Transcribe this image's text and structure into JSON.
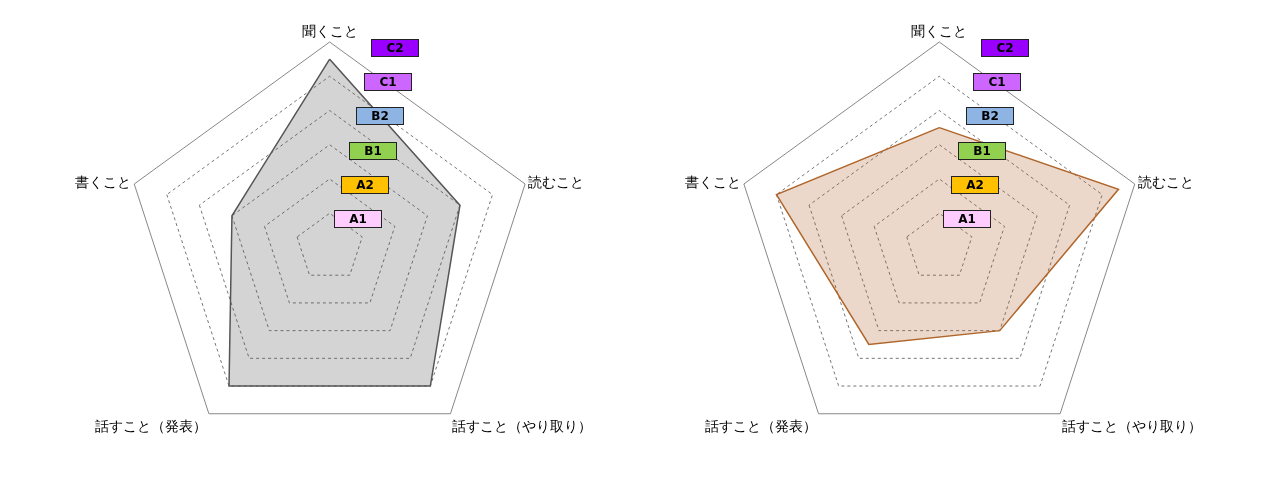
{
  "chart_data": [
    {
      "type": "radar",
      "categories": [
        "聞くこと",
        "読むこと",
        "話すこと（やり取り）",
        "話すこと（発表）",
        "書くこと"
      ],
      "ylim": [
        0,
        6
      ],
      "yticks": [
        {
          "value": 1,
          "label": "A1"
        },
        {
          "value": 2,
          "label": "A2"
        },
        {
          "value": 3,
          "label": "B1"
        },
        {
          "value": 4,
          "label": "B2"
        },
        {
          "value": 5,
          "label": "C1"
        },
        {
          "value": 6,
          "label": "C2"
        }
      ],
      "grid": true,
      "series": [
        {
          "color": "#555555",
          "values": [
            5.5,
            4,
            5,
            5,
            3
          ]
        }
      ]
    },
    {
      "type": "radar",
      "categories": [
        "聞くこと",
        "読むこと",
        "話すこと（やり取り）",
        "話すこと（発表）",
        "書くこと"
      ],
      "ylim": [
        0,
        6
      ],
      "yticks": [
        {
          "value": 1,
          "label": "A1"
        },
        {
          "value": 2,
          "label": "A2"
        },
        {
          "value": 3,
          "label": "B1"
        },
        {
          "value": 4,
          "label": "B2"
        },
        {
          "value": 5,
          "label": "C1"
        },
        {
          "value": 6,
          "label": "C2"
        }
      ],
      "grid": true,
      "series": [
        {
          "color": "#b0652a",
          "values": [
            3.5,
            5.5,
            3,
            3.5,
            5
          ]
        }
      ]
    }
  ]
}
